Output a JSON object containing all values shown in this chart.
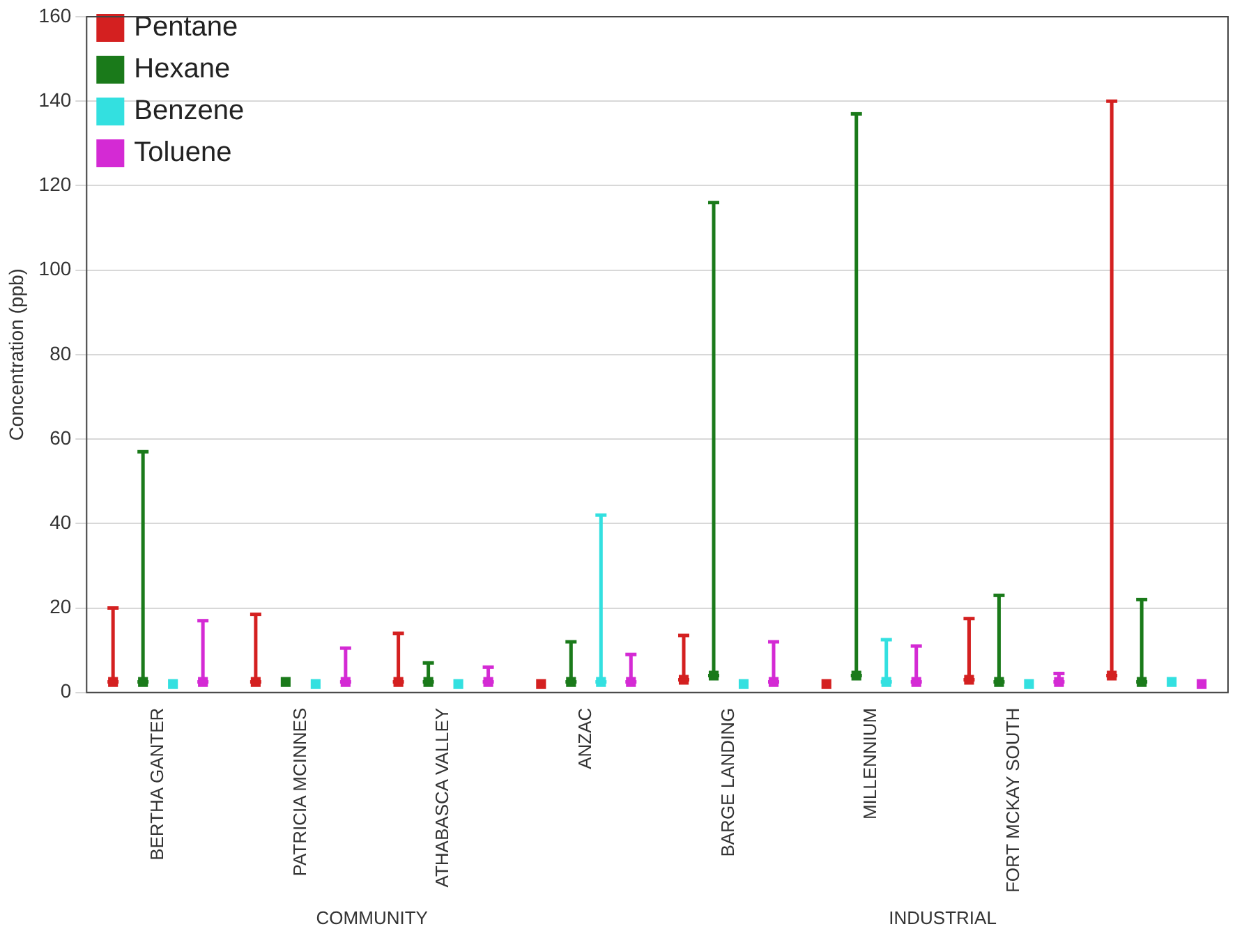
{
  "chart_data": {
    "type": "scatter",
    "ylabel": "Concentration (ppb)",
    "categories": [
      "BERTHA GANTER",
      "PATRICIA MCINNES",
      "ATHABASCA VALLEY",
      "ANZAC",
      "BARGE LANDING",
      "MILLENNIUM",
      "FORT MCKAY SOUTH",
      null
    ],
    "annotations": [
      "COMMUNITY",
      "INDUSTRIAL"
    ],
    "ylim": [
      0,
      160
    ],
    "yticks": [
      0,
      20,
      40,
      60,
      80,
      100,
      120,
      140,
      160
    ],
    "grid": "y",
    "legend": "top left",
    "marker": "square",
    "series": [
      {
        "name": "Pentane",
        "color": "#d42020",
        "values": [
          2.5,
          2.5,
          2.5,
          2,
          3,
          2,
          3,
          4
        ],
        "errors": [
          [
            2.5,
            20
          ],
          [
            2.5,
            18.5
          ],
          [
            2.5,
            14
          ],
          null,
          [
            3,
            13.5
          ],
          null,
          [
            3,
            17.5
          ],
          [
            4,
            140
          ]
        ]
      },
      {
        "name": "Hexane",
        "color": "#1a7a1a",
        "values": [
          2.5,
          2.5,
          2.5,
          2.5,
          4,
          4,
          2.5,
          2.5
        ],
        "errors": [
          [
            2.5,
            57
          ],
          null,
          [
            2.5,
            7
          ],
          [
            2.5,
            12
          ],
          [
            4,
            116
          ],
          [
            4,
            137
          ],
          [
            2.5,
            23
          ],
          [
            2.5,
            22
          ]
        ]
      },
      {
        "name": "Benzene",
        "color": "#33e0e0",
        "values": [
          2,
          2,
          2,
          2.5,
          2,
          2.5,
          2,
          2.5
        ],
        "errors": [
          null,
          null,
          null,
          [
            2.5,
            42
          ],
          null,
          [
            2.5,
            12.5
          ],
          null,
          null
        ]
      },
      {
        "name": "Toluene",
        "color": "#d42ad4",
        "values": [
          2.5,
          2.5,
          2.5,
          2.5,
          2.5,
          2.5,
          2.5,
          2
        ],
        "errors": [
          [
            2.5,
            17
          ],
          [
            2.5,
            10.5
          ],
          [
            2.5,
            6
          ],
          [
            2.5,
            9
          ],
          [
            2.5,
            12
          ],
          [
            2.5,
            11
          ],
          [
            2.5,
            4.5
          ],
          null
        ]
      }
    ]
  }
}
